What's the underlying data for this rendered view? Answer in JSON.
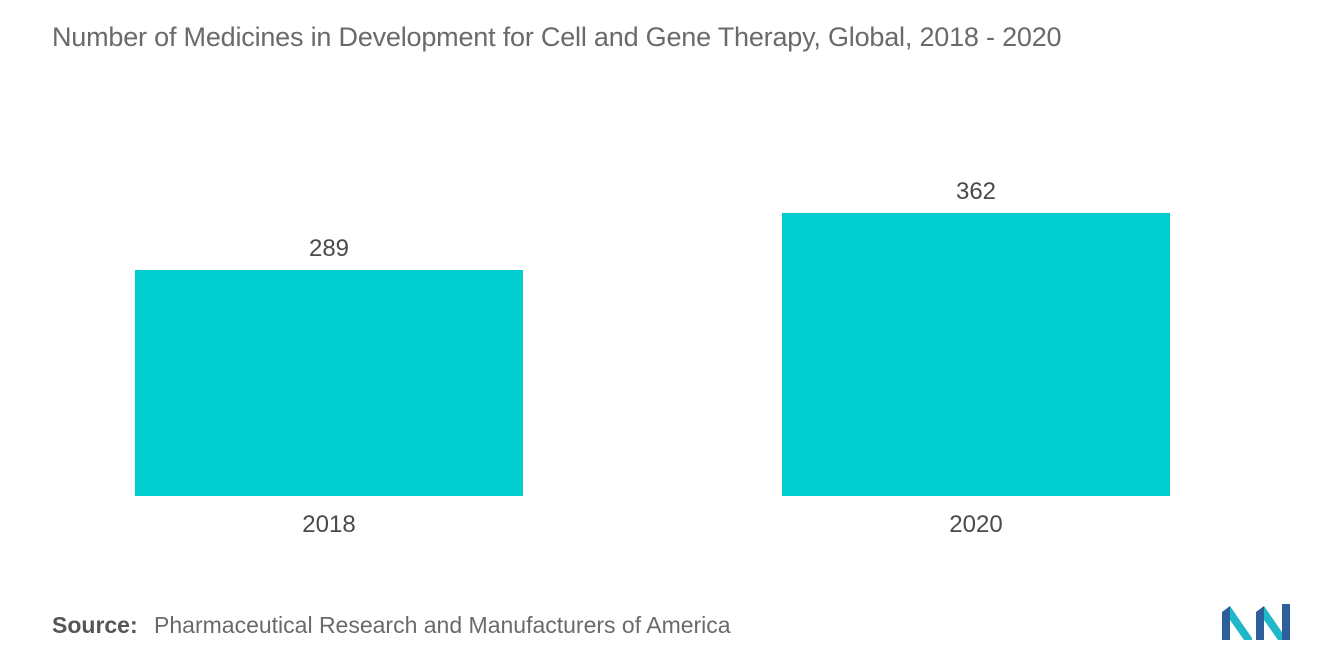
{
  "title": "Number of Medicines in Development for Cell and Gene Therapy, Global, 2018 - 2020",
  "source": {
    "key": "Source:",
    "text": "Pharmaceutical Research and Manufacturers of America"
  },
  "logo": {
    "icon": "mordor-intelligence-logo-icon",
    "colors": [
      "#2d5f9a",
      "#1fb8c9"
    ]
  },
  "colors": {
    "bar": "#00ced1",
    "text": "#4a4a4a",
    "title": "#6a6a6a"
  },
  "chart_data": {
    "type": "bar",
    "categories": [
      "2018",
      "2020"
    ],
    "values": [
      289,
      362
    ],
    "data_labels": [
      "289",
      "362"
    ],
    "title": "Number of Medicines in Development for Cell and Gene Therapy, Global, 2018 - 2020",
    "xlabel": "",
    "ylabel": "",
    "grid": false,
    "legend": "none"
  }
}
